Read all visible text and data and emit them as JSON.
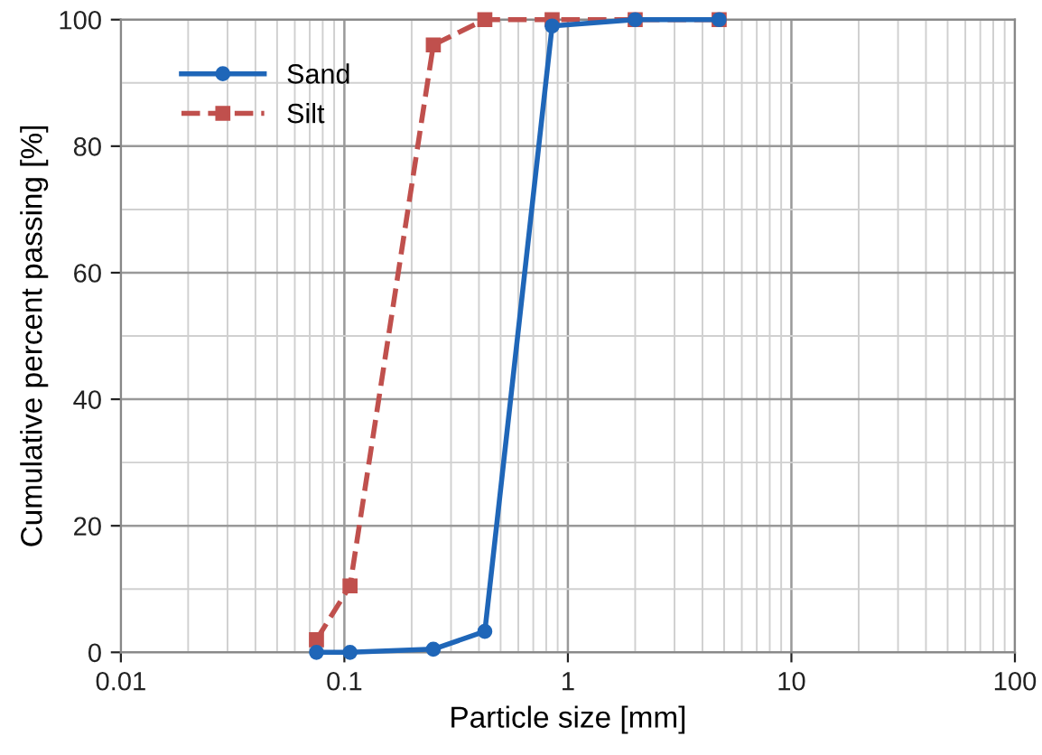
{
  "chart_data": {
    "type": "line",
    "xlabel": "Particle size [mm]",
    "ylabel": "Cumulative percent passing [%]",
    "log": "x",
    "xlim": [
      0.01,
      100
    ],
    "xticks": [
      0.01,
      0.1,
      1,
      10,
      100
    ],
    "ylim": [
      0,
      100
    ],
    "yticks": [
      0,
      20,
      40,
      60,
      80,
      100
    ],
    "grid": true,
    "legend": "top left",
    "series": [
      {
        "name": "Sand",
        "color": "#1f66b8",
        "marker": "circle",
        "line_style": "solid",
        "x": [
          0.075,
          0.106,
          0.25,
          0.425,
          0.85,
          2,
          4.75
        ],
        "values": [
          0,
          0,
          0.5,
          3.3,
          99,
          100,
          100
        ]
      },
      {
        "name": "Silt",
        "color": "#c0504d",
        "marker": "square",
        "line_style": "dashed",
        "x": [
          0.075,
          0.106,
          0.25,
          0.425,
          0.85,
          2,
          4.75
        ],
        "values": [
          2,
          10.5,
          96,
          100,
          100,
          100,
          100
        ]
      }
    ]
  }
}
